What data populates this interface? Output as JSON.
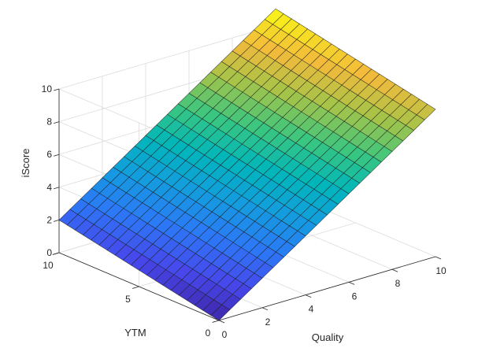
{
  "chart_data": {
    "type": "surface",
    "title": "",
    "xlabel": "Quality",
    "ylabel": "YTM",
    "zlabel": "iScore",
    "xlim": [
      0,
      10
    ],
    "ylim": [
      0,
      10
    ],
    "zlim": [
      0,
      10
    ],
    "x_ticks": [
      "0",
      "2",
      "4",
      "6",
      "8",
      "10"
    ],
    "y_ticks": [
      "0",
      "5",
      "10"
    ],
    "z_ticks": [
      "0",
      "2",
      "4",
      "6",
      "8",
      "10"
    ],
    "grid": true,
    "colormap": "parula",
    "mesh_divisions": 20,
    "surface": {
      "description_free_formula": "z = 0.9*x + 0.2*y",
      "corner_values": [
        {
          "x": 0,
          "y": 0,
          "z": 0
        },
        {
          "x": 10,
          "y": 0,
          "z": 9
        },
        {
          "x": 0,
          "y": 10,
          "z": 2
        },
        {
          "x": 10,
          "y": 10,
          "z": 11
        }
      ]
    }
  }
}
